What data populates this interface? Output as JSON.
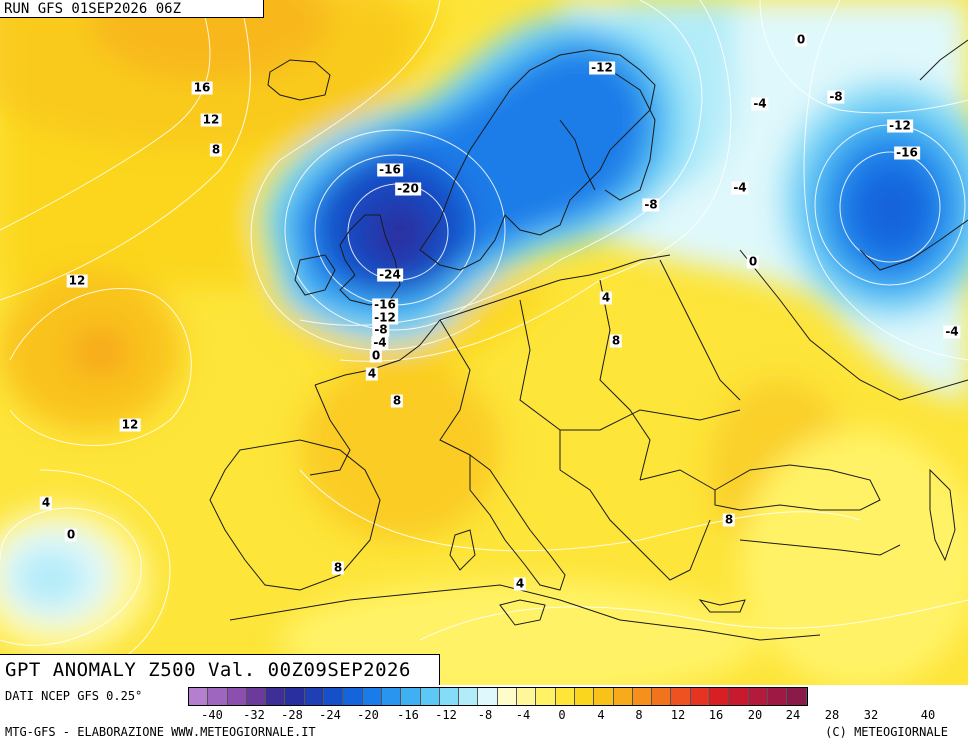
{
  "header": {
    "run_label": "RUN GFS 01SEP2026 06Z"
  },
  "title": {
    "text": "GPT ANOMALY Z500 Val. 00Z09SEP2026"
  },
  "footer": {
    "data_source": "DATI NCEP GFS 0.25°",
    "credit_left": "MTG-GFS - ELABORAZIONE WWW.METEOGIORNALE.IT",
    "credit_right": "(C) METEOGIORNALE"
  },
  "colors": {
    "scale": [
      "#b57fcf",
      "#9f66c0",
      "#8a4faf",
      "#6b3a9c",
      "#3d2f96",
      "#2a2fa0",
      "#1f3fb5",
      "#1550c8",
      "#1464dc",
      "#1a7ce8",
      "#2a95ef",
      "#3fb0f2",
      "#5cc8f5",
      "#85dcf7",
      "#b3ecf9",
      "#dff8fb",
      "#fffccc",
      "#fff799",
      "#fff266",
      "#fde53a",
      "#fbd61f",
      "#f9c21b",
      "#f7aa1a",
      "#f5901c",
      "#f2731e",
      "#ee5220",
      "#e63322",
      "#d82024",
      "#c71a2e",
      "#b31a3c",
      "#9e1a44",
      "#8a1a48"
    ],
    "coast": "#1a1a1a"
  },
  "scale_ticks": [
    "-40",
    "-32",
    "-28",
    "-24",
    "-20",
    "-16",
    "-12",
    "-8",
    "-4",
    "0",
    "4",
    "8",
    "12",
    "16",
    "20",
    "24",
    "28",
    "32",
    "40"
  ],
  "contour_labels": [
    {
      "text": "16"
    },
    {
      "text": "12"
    },
    {
      "text": "8"
    },
    {
      "text": "12"
    },
    {
      "text": "12"
    },
    {
      "text": "4"
    },
    {
      "text": "0"
    },
    {
      "text": "-16"
    },
    {
      "text": "-20"
    },
    {
      "text": "-24"
    },
    {
      "text": "-16"
    },
    {
      "text": "-12"
    },
    {
      "text": "-8"
    },
    {
      "text": "-4"
    },
    {
      "text": "0"
    },
    {
      "text": "4"
    },
    {
      "text": "8"
    },
    {
      "text": "8"
    },
    {
      "text": "4"
    },
    {
      "text": "-12"
    },
    {
      "text": "-8"
    },
    {
      "text": "4"
    },
    {
      "text": "8"
    },
    {
      "text": "8"
    },
    {
      "text": "0"
    },
    {
      "text": "-4"
    },
    {
      "text": "-4"
    },
    {
      "text": "0"
    },
    {
      "text": "-8"
    },
    {
      "text": "-12"
    },
    {
      "text": "-16"
    },
    {
      "text": "-4"
    }
  ]
}
